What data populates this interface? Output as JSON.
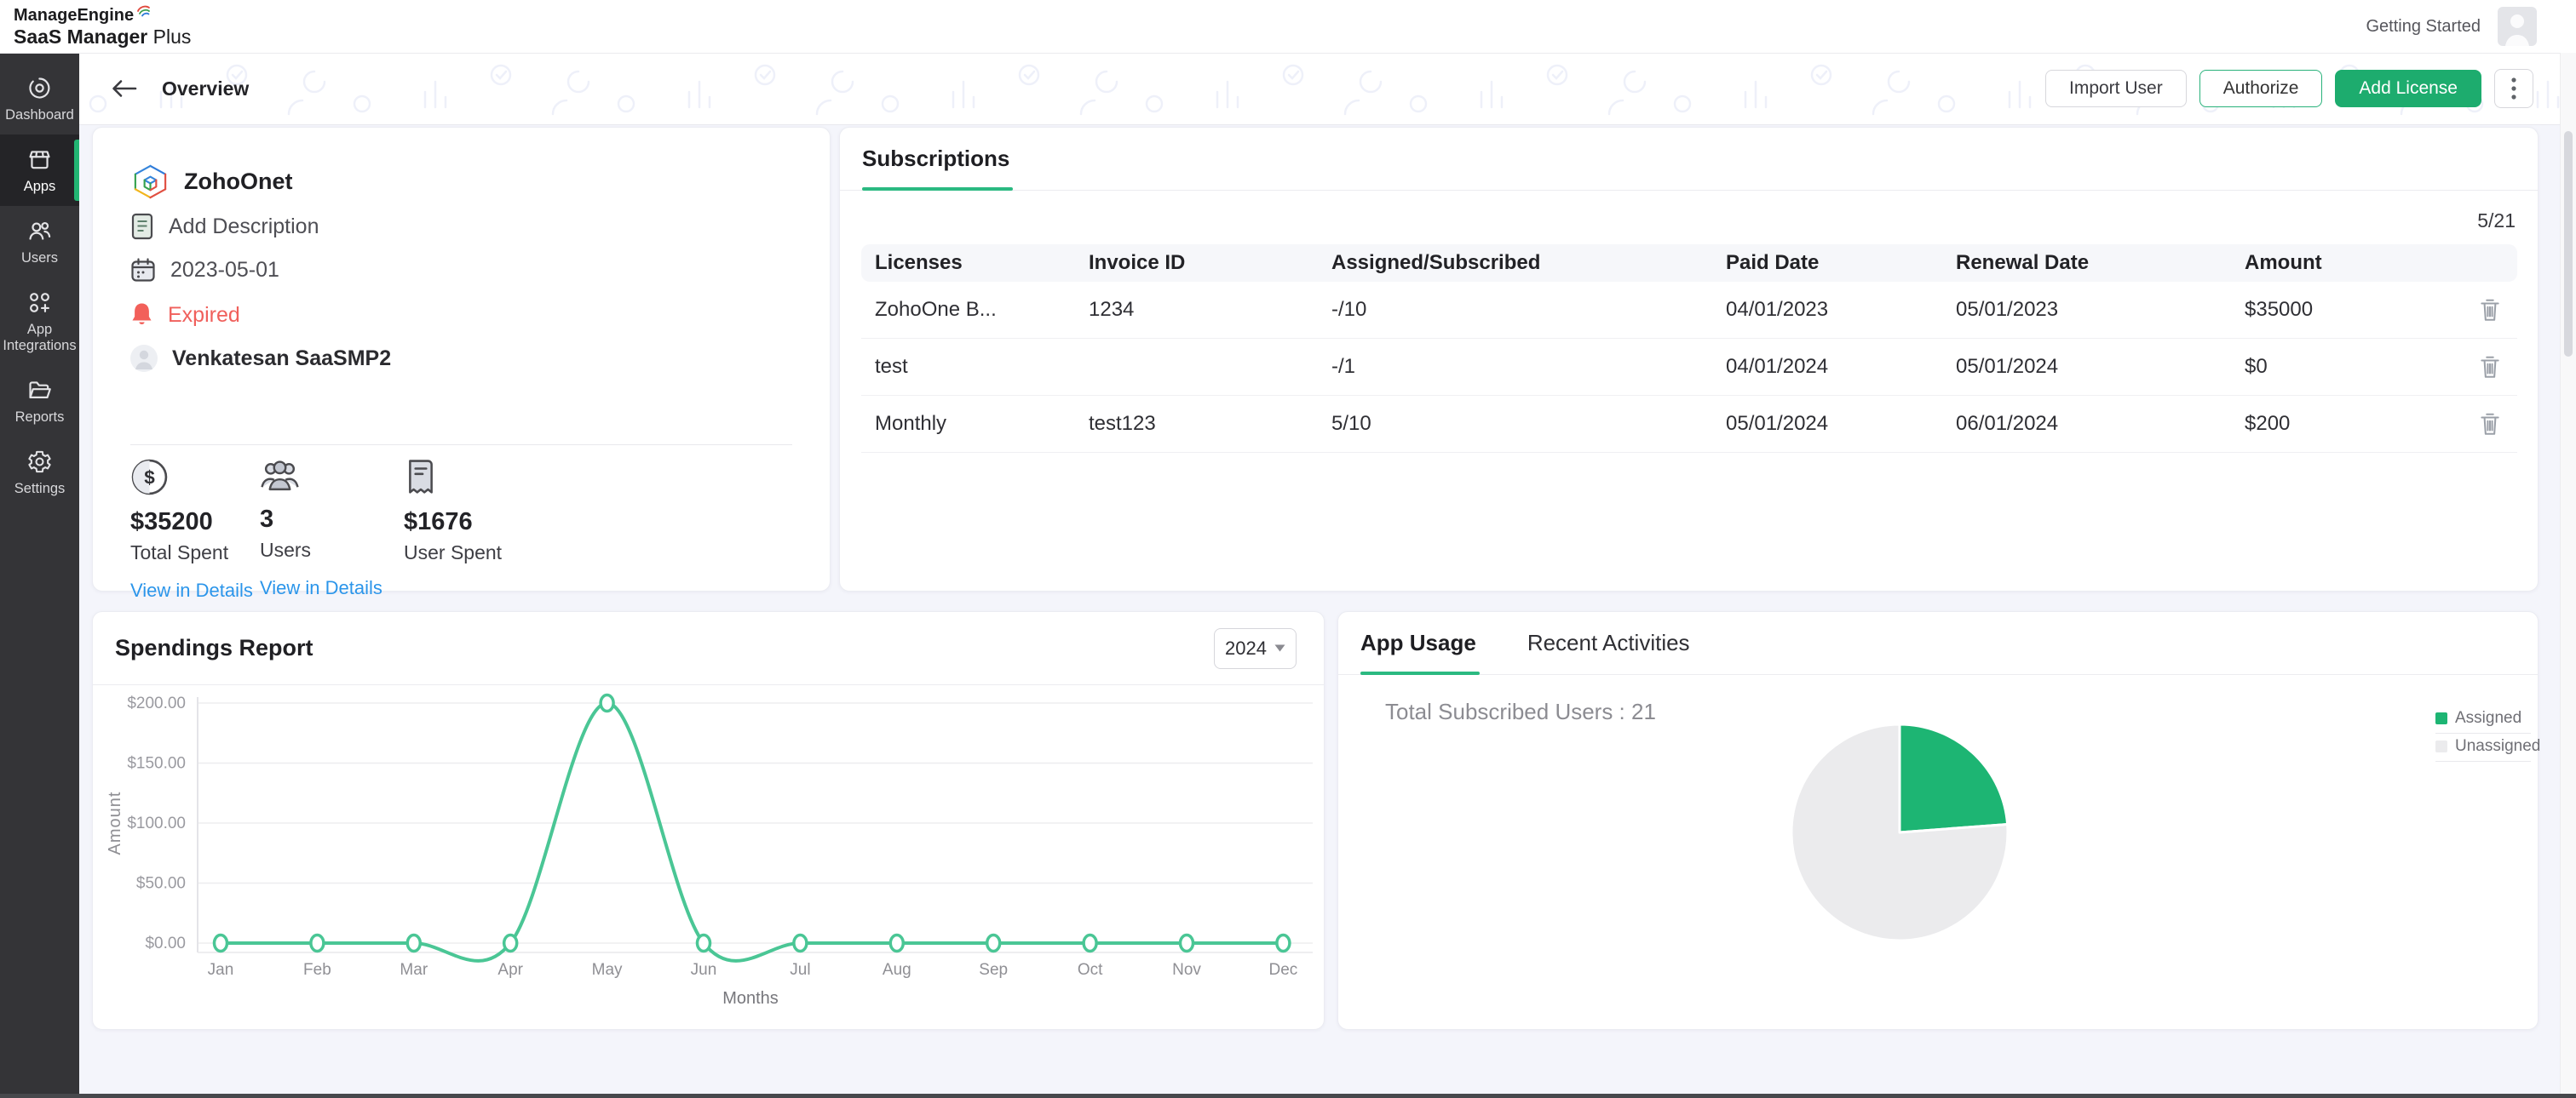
{
  "brand": {
    "line1": "ManageEngine",
    "line2_bold": "SaaS Manager",
    "line2_rest": "Plus"
  },
  "topbar": {
    "getting_started": "Getting Started"
  },
  "sidebar": {
    "items": [
      {
        "label": "Dashboard",
        "active": false
      },
      {
        "label": "Apps",
        "active": true
      },
      {
        "label": "Users",
        "active": false
      },
      {
        "label": "App Integrations",
        "active": false
      },
      {
        "label": "Reports",
        "active": false
      },
      {
        "label": "Settings",
        "active": false
      }
    ]
  },
  "header": {
    "title": "Overview",
    "import_user": "Import User",
    "authorize": "Authorize",
    "add_license": "Add License"
  },
  "app": {
    "name": "ZohoOnet",
    "description_placeholder": "Add Description",
    "date": "2023-05-01",
    "status": "Expired",
    "owner": "Venkatesan SaaSMP2",
    "stats": [
      {
        "value": "$35200",
        "label": "Total Spent",
        "link": "View in Details"
      },
      {
        "value": "3",
        "label": "Users",
        "link": "View in Details"
      },
      {
        "value": "$1676",
        "label": "User Spent",
        "link": ""
      }
    ]
  },
  "subscriptions": {
    "tab": "Subscriptions",
    "count": "5/21",
    "columns": [
      "Licenses",
      "Invoice ID",
      "Assigned/Subscribed",
      "Paid Date",
      "Renewal Date",
      "Amount"
    ],
    "rows": [
      {
        "license": "ZohoOne B...",
        "invoice": "1234",
        "assigned": "-/10",
        "paid": "04/01/2023",
        "renewal": "05/01/2023",
        "amount": "$35000"
      },
      {
        "license": "test",
        "invoice": "",
        "assigned": "-/1",
        "paid": "04/01/2024",
        "renewal": "05/01/2024",
        "amount": "$0"
      },
      {
        "license": "Monthly",
        "invoice": "test123",
        "assigned": "5/10",
        "paid": "05/01/2024",
        "renewal": "06/01/2024",
        "amount": "$200"
      }
    ]
  },
  "spendings": {
    "title": "Spendings Report",
    "year": "2024"
  },
  "usage": {
    "tab_active": "App Usage",
    "tab_inactive": "Recent Activities",
    "total": "Total Subscribed Users : 21",
    "legend": [
      "Assigned",
      "Unassigned"
    ]
  },
  "colors": {
    "accent_green": "#1dac6e",
    "tab_underline_green": "#2bb981",
    "chart_line_green": "#4ac695",
    "pie_assigned_green": "#1db573",
    "pie_unassigned_gray": "#ebebed",
    "expired_red": "#f0605c",
    "link_blue": "#2b95ea",
    "sidebar_dark": "#343437"
  },
  "chart_data": [
    {
      "type": "line",
      "title": "Spendings Report",
      "x": [
        "Jan",
        "Feb",
        "Mar",
        "Apr",
        "May",
        "Jun",
        "Jul",
        "Aug",
        "Sep",
        "Oct",
        "Nov",
        "Dec"
      ],
      "series": [
        {
          "name": "Amount",
          "values": [
            0,
            0,
            0,
            0,
            200,
            0,
            0,
            0,
            0,
            0,
            0,
            0
          ]
        }
      ],
      "xlabel": "Months",
      "ylabel": "Amount",
      "ylim": [
        0,
        200
      ],
      "yticks": [
        {
          "v": 0,
          "label": "$0.00"
        },
        {
          "v": 50,
          "label": "$50.00"
        },
        {
          "v": 100,
          "label": "$100.00"
        },
        {
          "v": 150,
          "label": "$150.00"
        },
        {
          "v": 200,
          "label": "$200.00"
        }
      ],
      "grid": true,
      "line_color": "#4ac695",
      "marker": "open-circle"
    },
    {
      "type": "pie",
      "title": "App Usage",
      "labels": [
        "Assigned",
        "Unassigned"
      ],
      "values": [
        5,
        16
      ],
      "total": 21,
      "colors": [
        "#1db573",
        "#ebebed"
      ],
      "legend_position": "right",
      "start_angle_deg": -90,
      "direction": "clockwise"
    }
  ]
}
